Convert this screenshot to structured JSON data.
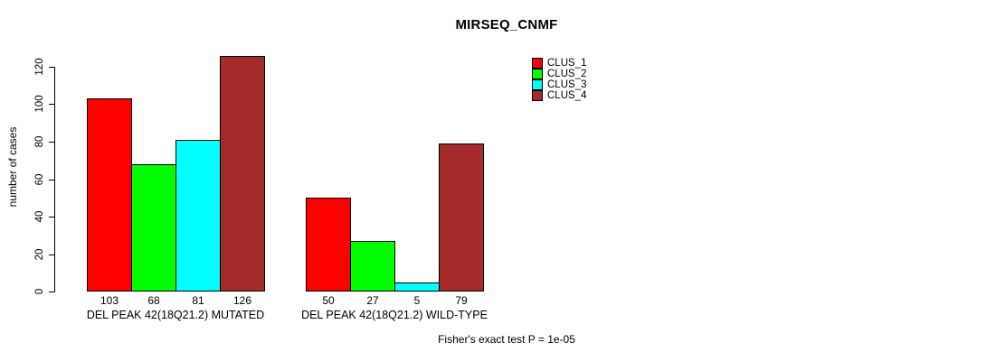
{
  "chart_data": {
    "type": "bar",
    "title": "MIRSEQ_CNMF",
    "ylabel": "number of cases",
    "ylim": [
      0,
      126
    ],
    "yticks": [
      0,
      20,
      40,
      60,
      80,
      100,
      120
    ],
    "grid": false,
    "legend_position": "top-right",
    "bar_colors": [
      "#ff0000",
      "#00ff00",
      "#00ffff",
      "#a52a2a"
    ],
    "bar_border_color": "#000000",
    "legend": [
      {
        "label": "CLUS_1",
        "color": "#ff0000"
      },
      {
        "label": "CLUS_2",
        "color": "#00ff00"
      },
      {
        "label": "CLUS_3",
        "color": "#00ffff"
      },
      {
        "label": "CLUS_4",
        "color": "#a52a2a"
      }
    ],
    "groups": [
      {
        "label": "DEL PEAK 42(18Q21.2) MUTATED",
        "values": [
          103,
          68,
          81,
          126
        ]
      },
      {
        "label": "DEL PEAK 42(18Q21.2) WILD-TYPE",
        "values": [
          50,
          27,
          5,
          79
        ]
      }
    ],
    "series": [
      {
        "name": "CLUS_1",
        "values": [
          103,
          50
        ]
      },
      {
        "name": "CLUS_2",
        "values": [
          68,
          27
        ]
      },
      {
        "name": "CLUS_3",
        "values": [
          81,
          5
        ]
      },
      {
        "name": "CLUS_4",
        "values": [
          126,
          79
        ]
      }
    ],
    "annotation": "Fisher's exact test P = 1e-05"
  }
}
